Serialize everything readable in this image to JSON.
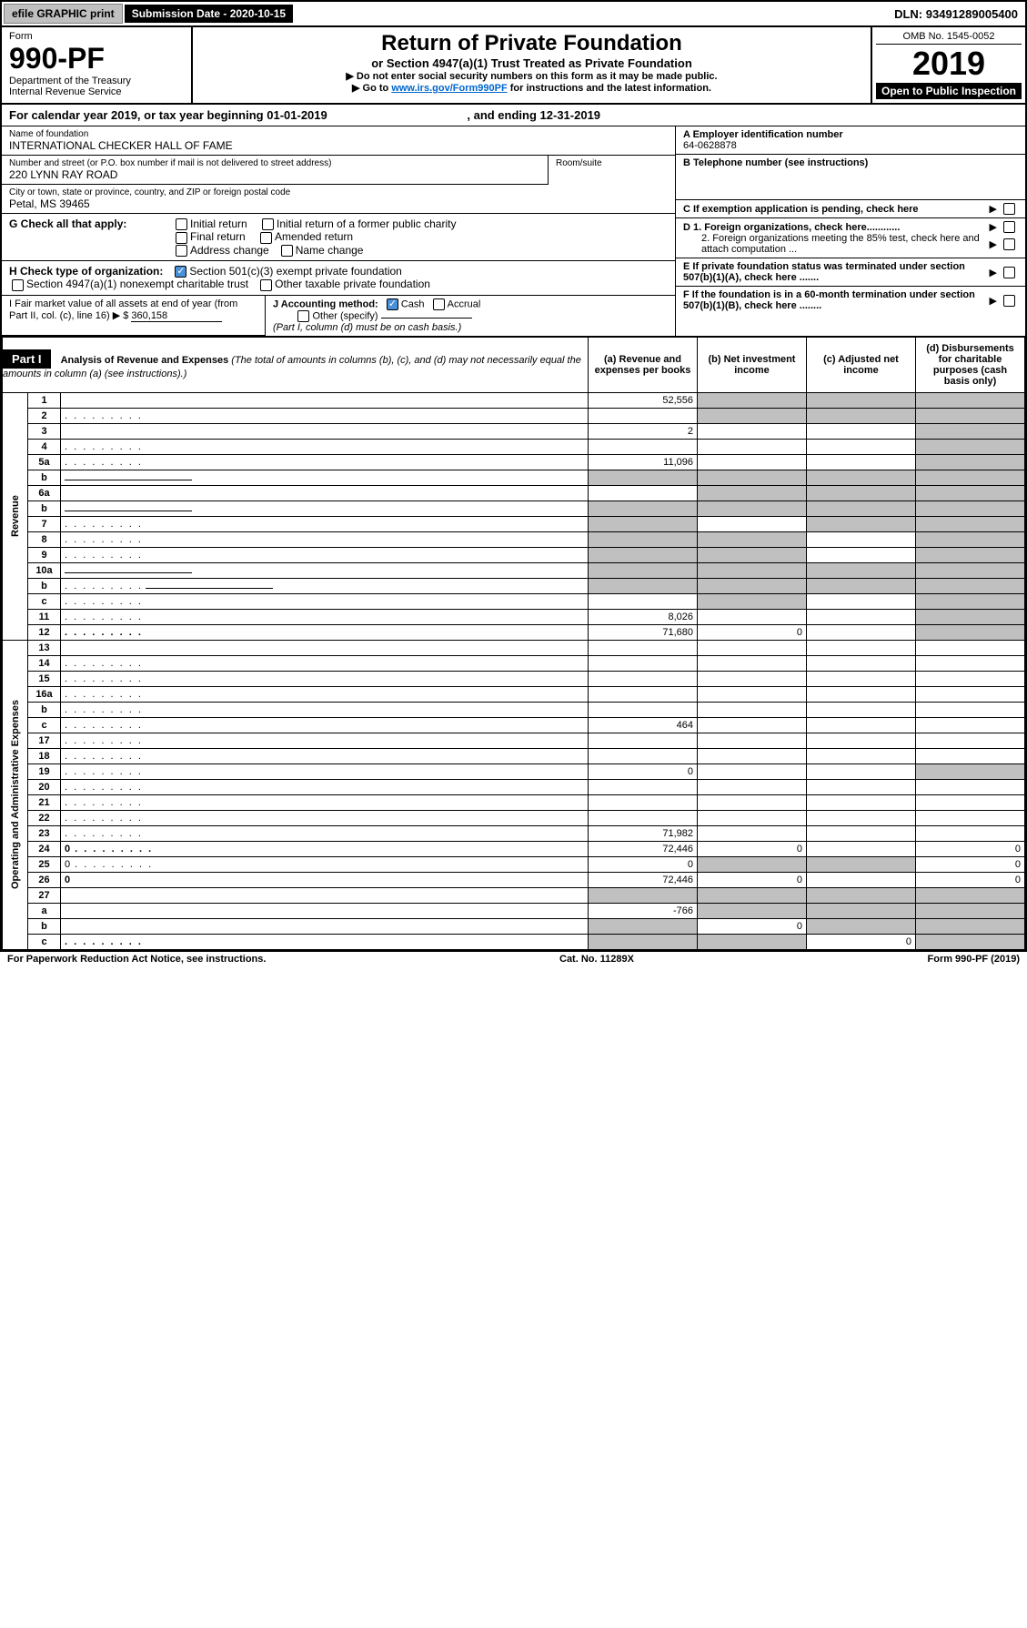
{
  "topbar": {
    "efile": "efile GRAPHIC print",
    "submission": "Submission Date - 2020-10-15",
    "dln_label": "DLN:",
    "dln": "93491289005400"
  },
  "header": {
    "form": "Form",
    "form_no": "990-PF",
    "dept": "Department of the Treasury",
    "irs": "Internal Revenue Service",
    "title": "Return of Private Foundation",
    "subtitle": "or Section 4947(a)(1) Trust Treated as Private Foundation",
    "note1": "▶ Do not enter social security numbers on this form as it may be made public.",
    "note2_pre": "▶ Go to ",
    "note2_link": "www.irs.gov/Form990PF",
    "note2_post": " for instructions and the latest information.",
    "omb": "OMB No. 1545-0052",
    "year": "2019",
    "open": "Open to Public Inspection"
  },
  "calyear": {
    "pre": "For calendar year 2019, or tax year beginning ",
    "begin": "01-01-2019",
    "mid": ", and ending ",
    "end": "12-31-2019"
  },
  "info": {
    "name_lbl": "Name of foundation",
    "name": "INTERNATIONAL CHECKER HALL OF FAME",
    "addr_lbl": "Number and street (or P.O. box number if mail is not delivered to street address)",
    "addr": "220 LYNN RAY ROAD",
    "room_lbl": "Room/suite",
    "city_lbl": "City or town, state or province, country, and ZIP or foreign postal code",
    "city": "Petal, MS  39465",
    "ein_lbl": "A Employer identification number",
    "ein": "64-0628878",
    "phone_lbl": "B Telephone number (see instructions)",
    "c_lbl": "C If exemption application is pending, check here",
    "d1": "D 1. Foreign organizations, check here............",
    "d2": "2. Foreign organizations meeting the 85% test, check here and attach computation ...",
    "e_lbl": "E  If private foundation status was terminated under section 507(b)(1)(A), check here .......",
    "f_lbl": "F  If the foundation is in a 60-month termination under section 507(b)(1)(B), check here ........"
  },
  "g": {
    "label": "G Check all that apply:",
    "o1": "Initial return",
    "o2": "Initial return of a former public charity",
    "o3": "Final return",
    "o4": "Amended return",
    "o5": "Address change",
    "o6": "Name change"
  },
  "h": {
    "label": "H Check type of organization:",
    "o1": "Section 501(c)(3) exempt private foundation",
    "o2": "Section 4947(a)(1) nonexempt charitable trust",
    "o3": "Other taxable private foundation"
  },
  "i": {
    "label": "I Fair market value of all assets at end of year (from Part II, col. (c), line 16) ▶ $",
    "val": "360,158"
  },
  "j": {
    "label": "J Accounting method:",
    "o1": "Cash",
    "o2": "Accrual",
    "o3": "Other (specify)",
    "note": "(Part I, column (d) must be on cash basis.)"
  },
  "part1": {
    "hdr": "Part I",
    "title": "Analysis of Revenue and Expenses",
    "sub": "(The total of amounts in columns (b), (c), and (d) may not necessarily equal the amounts in column (a) (see instructions).)",
    "col_a": "(a)    Revenue and expenses per books",
    "col_b": "(b)   Net investment income",
    "col_c": "(c)   Adjusted net income",
    "col_d": "(d)   Disbursements for charitable purposes (cash basis only)"
  },
  "side": {
    "rev": "Revenue",
    "exp": "Operating and Administrative Expenses"
  },
  "rows": [
    {
      "n": "1",
      "d": "",
      "a": "52,556",
      "b": "",
      "c": "",
      "ga": false,
      "gb": true,
      "gc": true,
      "gd": true
    },
    {
      "n": "2",
      "d": "",
      "a": "",
      "b": "",
      "c": "",
      "ga": false,
      "gb": true,
      "gc": true,
      "gd": true,
      "dots": true
    },
    {
      "n": "3",
      "d": "",
      "a": "2",
      "b": "",
      "c": "",
      "ga": false,
      "gb": false,
      "gc": false,
      "gd": true
    },
    {
      "n": "4",
      "d": "",
      "a": "",
      "b": "",
      "c": "",
      "ga": false,
      "gb": false,
      "gc": false,
      "gd": true,
      "dots": true
    },
    {
      "n": "5a",
      "d": "",
      "a": "11,096",
      "b": "",
      "c": "",
      "ga": false,
      "gb": false,
      "gc": false,
      "gd": true,
      "dots": true
    },
    {
      "n": "b",
      "d": "",
      "a": "",
      "b": "",
      "c": "",
      "ga": true,
      "gb": true,
      "gc": true,
      "gd": true,
      "ul": true
    },
    {
      "n": "6a",
      "d": "",
      "a": "",
      "b": "",
      "c": "",
      "ga": false,
      "gb": true,
      "gc": true,
      "gd": true
    },
    {
      "n": "b",
      "d": "",
      "a": "",
      "b": "",
      "c": "",
      "ga": true,
      "gb": true,
      "gc": true,
      "gd": true,
      "ul": true
    },
    {
      "n": "7",
      "d": "",
      "a": "",
      "b": "",
      "c": "",
      "ga": true,
      "gb": false,
      "gc": true,
      "gd": true,
      "dots": true
    },
    {
      "n": "8",
      "d": "",
      "a": "",
      "b": "",
      "c": "",
      "ga": true,
      "gb": true,
      "gc": false,
      "gd": true,
      "dots": true
    },
    {
      "n": "9",
      "d": "",
      "a": "",
      "b": "",
      "c": "",
      "ga": true,
      "gb": true,
      "gc": false,
      "gd": true,
      "dots": true
    },
    {
      "n": "10a",
      "d": "",
      "a": "",
      "b": "",
      "c": "",
      "ga": true,
      "gb": true,
      "gc": true,
      "gd": true,
      "ul": true
    },
    {
      "n": "b",
      "d": "",
      "a": "",
      "b": "",
      "c": "",
      "ga": true,
      "gb": true,
      "gc": true,
      "gd": true,
      "ul": true,
      "dots": true
    },
    {
      "n": "c",
      "d": "",
      "a": "",
      "b": "",
      "c": "",
      "ga": false,
      "gb": true,
      "gc": false,
      "gd": true,
      "dots": true
    },
    {
      "n": "11",
      "d": "",
      "a": "8,026",
      "b": "",
      "c": "",
      "ga": false,
      "gb": false,
      "gc": false,
      "gd": true,
      "dots": true
    },
    {
      "n": "12",
      "d": "",
      "a": "71,680",
      "b": "0",
      "c": "",
      "ga": false,
      "gb": false,
      "gc": false,
      "gd": true,
      "bold": true,
      "dots": true
    }
  ],
  "exp_rows": [
    {
      "n": "13",
      "d": "",
      "a": "",
      "b": "",
      "c": ""
    },
    {
      "n": "14",
      "d": "",
      "a": "",
      "b": "",
      "c": "",
      "dots": true
    },
    {
      "n": "15",
      "d": "",
      "a": "",
      "b": "",
      "c": "",
      "dots": true
    },
    {
      "n": "16a",
      "d": "",
      "a": "",
      "b": "",
      "c": "",
      "dots": true
    },
    {
      "n": "b",
      "d": "",
      "a": "",
      "b": "",
      "c": "",
      "dots": true
    },
    {
      "n": "c",
      "d": "",
      "a": "464",
      "b": "",
      "c": "",
      "dots": true
    },
    {
      "n": "17",
      "d": "",
      "a": "",
      "b": "",
      "c": "",
      "dots": true
    },
    {
      "n": "18",
      "d": "",
      "a": "",
      "b": "",
      "c": "",
      "dots": true
    },
    {
      "n": "19",
      "d": "",
      "a": "0",
      "b": "",
      "c": "",
      "gc": false,
      "gd": true,
      "dots": true
    },
    {
      "n": "20",
      "d": "",
      "a": "",
      "b": "",
      "c": "",
      "dots": true
    },
    {
      "n": "21",
      "d": "",
      "a": "",
      "b": "",
      "c": "",
      "dots": true
    },
    {
      "n": "22",
      "d": "",
      "a": "",
      "b": "",
      "c": "",
      "dots": true
    },
    {
      "n": "23",
      "d": "",
      "a": "71,982",
      "b": "",
      "c": "",
      "dots": true
    },
    {
      "n": "24",
      "d": "0",
      "a": "72,446",
      "b": "0",
      "c": "",
      "bold": true,
      "dots": true
    },
    {
      "n": "25",
      "d": "0",
      "a": "0",
      "b": "",
      "c": "",
      "gb": true,
      "gc": true,
      "dots": true
    },
    {
      "n": "26",
      "d": "0",
      "a": "72,446",
      "b": "0",
      "c": "",
      "bold": true
    },
    {
      "n": "27",
      "d": "",
      "a": "",
      "b": "",
      "c": "",
      "ga": true,
      "gb": true,
      "gc": true,
      "gd": true
    },
    {
      "n": "a",
      "d": "",
      "a": "-766",
      "b": "",
      "c": "",
      "gb": true,
      "gc": true,
      "gd": true,
      "bold": true
    },
    {
      "n": "b",
      "d": "",
      "a": "",
      "b": "0",
      "c": "",
      "ga": true,
      "gc": true,
      "gd": true,
      "bold": true
    },
    {
      "n": "c",
      "d": "",
      "a": "",
      "b": "",
      "c": "0",
      "ga": true,
      "gb": true,
      "gd": true,
      "bold": true,
      "dots": true
    }
  ],
  "footer": {
    "left": "For Paperwork Reduction Act Notice, see instructions.",
    "mid": "Cat. No. 11289X",
    "right": "Form 990-PF (2019)"
  }
}
